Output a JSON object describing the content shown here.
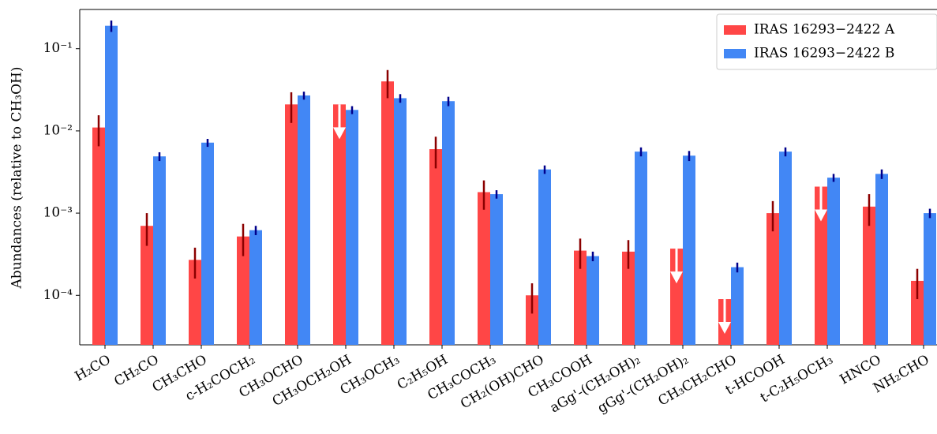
{
  "chart_data": {
    "type": "bar",
    "y_label": "Abundances (relative to CH₃OH)",
    "log_scale": true,
    "legend": "upper right",
    "categories": [
      "H₂CO",
      "CH₂CO",
      "CH₃CHO",
      "c-H₂COCH₂",
      "CH₃OCHO",
      "CH₃OCH₂OH",
      "CH₃OCH₃",
      "C₂H₅OH",
      "CH₃COCH₃",
      "CH₂(OH)CHO",
      "CH₃COOH",
      "aGg'-(CH₂OH)₂",
      "gGg'-(CH₂OH)₂",
      "CH₃CH₂CHO",
      "t-HCOOH",
      "t-C₂H₅OCH₃",
      "HNCO",
      "NH₂CHO"
    ],
    "series": [
      {
        "name": "IRAS 16293−2422 A",
        "color": "#ff4646",
        "error_color": "#8b0000",
        "values": [
          0.011,
          0.0007,
          0.00027,
          0.00052,
          0.021,
          0.021,
          0.04,
          0.006,
          0.0018,
          0.0001,
          0.00035,
          0.00034,
          0.00037,
          9e-05,
          0.001,
          0.0021,
          0.0012,
          0.00015
        ],
        "errors": [
          0.0045,
          0.0003,
          0.00011,
          0.00022,
          0.0085,
          null,
          0.015,
          0.0025,
          0.0007,
          4e-05,
          0.00014,
          0.00013,
          null,
          null,
          0.0004,
          null,
          0.0005,
          6e-05
        ],
        "upper_limit": [
          false,
          false,
          false,
          false,
          false,
          true,
          false,
          false,
          false,
          false,
          false,
          false,
          true,
          true,
          false,
          true,
          false,
          false
        ]
      },
      {
        "name": "IRAS 16293−2422 B",
        "color": "#4287f5",
        "error_color": "#00008b",
        "values": [
          0.19,
          0.0049,
          0.0072,
          0.00062,
          0.027,
          0.018,
          0.025,
          0.023,
          0.0017,
          0.0034,
          0.0003,
          0.0056,
          0.005,
          0.00022,
          0.0056,
          0.0027,
          0.003,
          0.001
        ],
        "errors": [
          0.03,
          0.0006,
          0.0008,
          8e-05,
          0.003,
          0.002,
          0.003,
          0.003,
          0.0002,
          0.0004,
          4e-05,
          0.0007,
          0.0007,
          3e-05,
          0.0007,
          0.0003,
          0.0004,
          0.00013
        ],
        "upper_limit": [
          false,
          false,
          false,
          false,
          false,
          false,
          false,
          false,
          false,
          false,
          false,
          false,
          false,
          false,
          false,
          false,
          false,
          false
        ]
      }
    ],
    "ylim": [
      2.5e-05,
      0.3
    ],
    "yticks": [
      {
        "value": 0.0001,
        "label": "10⁻⁴"
      },
      {
        "value": 0.001,
        "label": "10⁻³"
      },
      {
        "value": 0.01,
        "label": "10⁻²"
      },
      {
        "value": 0.1,
        "label": "10⁻¹"
      }
    ]
  }
}
